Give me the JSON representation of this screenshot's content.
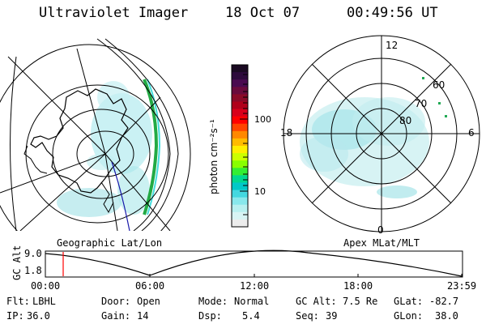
{
  "header": {
    "instrument": "Ultraviolet Imager",
    "date": "18 Oct 07",
    "time": "00:49:56 UT"
  },
  "colorbar": {
    "unit_label": "photon cm⁻²s⁻¹",
    "ticks": [
      "100",
      "10"
    ],
    "colors": [
      "#1a0a22",
      "#2d0a3c",
      "#4a0a50",
      "#6a0a3c",
      "#8a0a28",
      "#b0001a",
      "#d8001a",
      "#ff0000",
      "#ff4400",
      "#ff8800",
      "#ffbb00",
      "#ffee00",
      "#ccff00",
      "#88ff00",
      "#33ee33",
      "#00d890",
      "#00c8c8",
      "#44d8e0",
      "#88e8ec",
      "#b8f0f0",
      "#d8f4f4",
      "#ececec"
    ]
  },
  "geo_map": {
    "label": "Geographic Lat/Lon"
  },
  "apex_map": {
    "label": "Apex MLat/MLT",
    "mlt_labels": {
      "top": "12",
      "left": "18",
      "right": "6",
      "bottom": "0"
    },
    "lat_labels": [
      "60",
      "70",
      "80"
    ]
  },
  "altitude_plot": {
    "ylabel": "GC Alt",
    "y_ticks": [
      "9.0",
      "1.8"
    ],
    "x_ticks": [
      "00:00",
      "06:00",
      "12:00",
      "18:00",
      "23:59"
    ],
    "marker_time": "00:49:56"
  },
  "footer": {
    "row1": [
      {
        "label": "Flt:",
        "value": "LBHL"
      },
      {
        "label": "Door:",
        "value": "Open"
      },
      {
        "label": "Mode:",
        "value": "Normal"
      },
      {
        "label": "GC Alt:",
        "value": "7.5 Re"
      },
      {
        "label": "GLat:",
        "value": "-82.7"
      }
    ],
    "row2": [
      {
        "label": "IP:",
        "value": "36.0"
      },
      {
        "label": "Gain:",
        "value": "14"
      },
      {
        "label": "Dsp:",
        "value": "5.4"
      },
      {
        "label": "Seq:",
        "value": "39"
      },
      {
        "label": "GLon:",
        "value": "38.0"
      }
    ]
  }
}
